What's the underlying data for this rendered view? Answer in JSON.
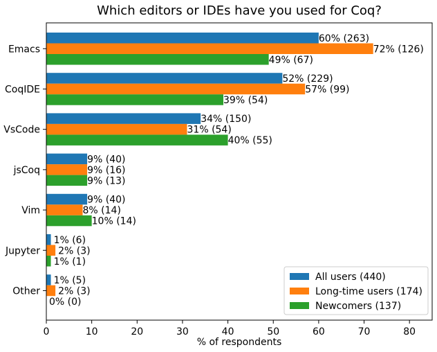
{
  "chart_data": {
    "type": "bar",
    "orientation": "horizontal",
    "title": "Which editors or IDEs have you used for Coq?",
    "xlabel": "% of respondents",
    "ylabel": "",
    "xlim": [
      0,
      85
    ],
    "xticks": [
      0,
      10,
      20,
      30,
      40,
      50,
      60,
      70,
      80
    ],
    "grid": false,
    "legend_position": "bottom-right",
    "categories": [
      "Emacs",
      "CoqIDE",
      "VsCode",
      "jsCoq",
      "Vim",
      "Jupyter",
      "Other"
    ],
    "series": [
      {
        "name": "All users (440)",
        "color": "#1f77b4",
        "values": [
          60,
          52,
          34,
          9,
          9,
          1,
          1
        ],
        "labels": [
          "60% (263)",
          "52% (229)",
          "34% (150)",
          "9% (40)",
          "9% (40)",
          "1% (6)",
          "1% (5)"
        ]
      },
      {
        "name": "Long-time users (174)",
        "color": "#ff7f0e",
        "values": [
          72,
          57,
          31,
          9,
          8,
          2,
          2
        ],
        "labels": [
          "72% (126)",
          "57% (99)",
          "31% (54)",
          "9% (16)",
          "8% (14)",
          "2% (3)",
          "2% (3)"
        ]
      },
      {
        "name": "Newcomers (137)",
        "color": "#2ca02c",
        "values": [
          49,
          39,
          40,
          9,
          10,
          1,
          0
        ],
        "labels": [
          "49% (67)",
          "39% (54)",
          "40% (55)",
          "9% (13)",
          "10% (14)",
          "1% (1)",
          "0% (0)"
        ]
      }
    ]
  }
}
